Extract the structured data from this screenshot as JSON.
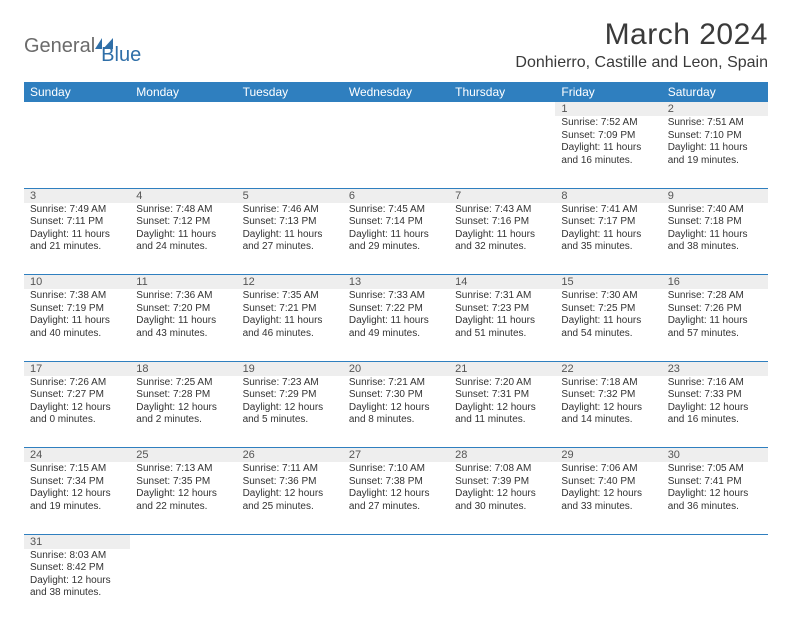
{
  "brand": {
    "part1": "General",
    "part2": "Blue"
  },
  "title": "March 2024",
  "location": "Donhierro, Castille and Leon, Spain",
  "colors": {
    "header_bg": "#2f7fbf",
    "header_text": "#ffffff",
    "daynum_bg": "#eeeeee",
    "rule": "#2f7fbf",
    "body_text": "#333333",
    "logo_gray": "#6b6b6b",
    "logo_blue": "#2f6fa8"
  },
  "weekdays": [
    "Sunday",
    "Monday",
    "Tuesday",
    "Wednesday",
    "Thursday",
    "Friday",
    "Saturday"
  ],
  "typography": {
    "header_pt": 12,
    "cell_pt": 10,
    "title_pt": 30,
    "location_pt": 16
  },
  "weeks": [
    [
      null,
      null,
      null,
      null,
      null,
      {
        "n": "1",
        "sr": "7:52 AM",
        "ss": "7:09 PM",
        "dl": "11 hours and 16 minutes."
      },
      {
        "n": "2",
        "sr": "7:51 AM",
        "ss": "7:10 PM",
        "dl": "11 hours and 19 minutes."
      }
    ],
    [
      {
        "n": "3",
        "sr": "7:49 AM",
        "ss": "7:11 PM",
        "dl": "11 hours and 21 minutes."
      },
      {
        "n": "4",
        "sr": "7:48 AM",
        "ss": "7:12 PM",
        "dl": "11 hours and 24 minutes."
      },
      {
        "n": "5",
        "sr": "7:46 AM",
        "ss": "7:13 PM",
        "dl": "11 hours and 27 minutes."
      },
      {
        "n": "6",
        "sr": "7:45 AM",
        "ss": "7:14 PM",
        "dl": "11 hours and 29 minutes."
      },
      {
        "n": "7",
        "sr": "7:43 AM",
        "ss": "7:16 PM",
        "dl": "11 hours and 32 minutes."
      },
      {
        "n": "8",
        "sr": "7:41 AM",
        "ss": "7:17 PM",
        "dl": "11 hours and 35 minutes."
      },
      {
        "n": "9",
        "sr": "7:40 AM",
        "ss": "7:18 PM",
        "dl": "11 hours and 38 minutes."
      }
    ],
    [
      {
        "n": "10",
        "sr": "7:38 AM",
        "ss": "7:19 PM",
        "dl": "11 hours and 40 minutes."
      },
      {
        "n": "11",
        "sr": "7:36 AM",
        "ss": "7:20 PM",
        "dl": "11 hours and 43 minutes."
      },
      {
        "n": "12",
        "sr": "7:35 AM",
        "ss": "7:21 PM",
        "dl": "11 hours and 46 minutes."
      },
      {
        "n": "13",
        "sr": "7:33 AM",
        "ss": "7:22 PM",
        "dl": "11 hours and 49 minutes."
      },
      {
        "n": "14",
        "sr": "7:31 AM",
        "ss": "7:23 PM",
        "dl": "11 hours and 51 minutes."
      },
      {
        "n": "15",
        "sr": "7:30 AM",
        "ss": "7:25 PM",
        "dl": "11 hours and 54 minutes."
      },
      {
        "n": "16",
        "sr": "7:28 AM",
        "ss": "7:26 PM",
        "dl": "11 hours and 57 minutes."
      }
    ],
    [
      {
        "n": "17",
        "sr": "7:26 AM",
        "ss": "7:27 PM",
        "dl": "12 hours and 0 minutes."
      },
      {
        "n": "18",
        "sr": "7:25 AM",
        "ss": "7:28 PM",
        "dl": "12 hours and 2 minutes."
      },
      {
        "n": "19",
        "sr": "7:23 AM",
        "ss": "7:29 PM",
        "dl": "12 hours and 5 minutes."
      },
      {
        "n": "20",
        "sr": "7:21 AM",
        "ss": "7:30 PM",
        "dl": "12 hours and 8 minutes."
      },
      {
        "n": "21",
        "sr": "7:20 AM",
        "ss": "7:31 PM",
        "dl": "12 hours and 11 minutes."
      },
      {
        "n": "22",
        "sr": "7:18 AM",
        "ss": "7:32 PM",
        "dl": "12 hours and 14 minutes."
      },
      {
        "n": "23",
        "sr": "7:16 AM",
        "ss": "7:33 PM",
        "dl": "12 hours and 16 minutes."
      }
    ],
    [
      {
        "n": "24",
        "sr": "7:15 AM",
        "ss": "7:34 PM",
        "dl": "12 hours and 19 minutes."
      },
      {
        "n": "25",
        "sr": "7:13 AM",
        "ss": "7:35 PM",
        "dl": "12 hours and 22 minutes."
      },
      {
        "n": "26",
        "sr": "7:11 AM",
        "ss": "7:36 PM",
        "dl": "12 hours and 25 minutes."
      },
      {
        "n": "27",
        "sr": "7:10 AM",
        "ss": "7:38 PM",
        "dl": "12 hours and 27 minutes."
      },
      {
        "n": "28",
        "sr": "7:08 AM",
        "ss": "7:39 PM",
        "dl": "12 hours and 30 minutes."
      },
      {
        "n": "29",
        "sr": "7:06 AM",
        "ss": "7:40 PM",
        "dl": "12 hours and 33 minutes."
      },
      {
        "n": "30",
        "sr": "7:05 AM",
        "ss": "7:41 PM",
        "dl": "12 hours and 36 minutes."
      }
    ],
    [
      {
        "n": "31",
        "sr": "8:03 AM",
        "ss": "8:42 PM",
        "dl": "12 hours and 38 minutes."
      },
      null,
      null,
      null,
      null,
      null,
      null
    ]
  ],
  "labels": {
    "sunrise": "Sunrise:",
    "sunset": "Sunset:",
    "daylight": "Daylight:"
  }
}
